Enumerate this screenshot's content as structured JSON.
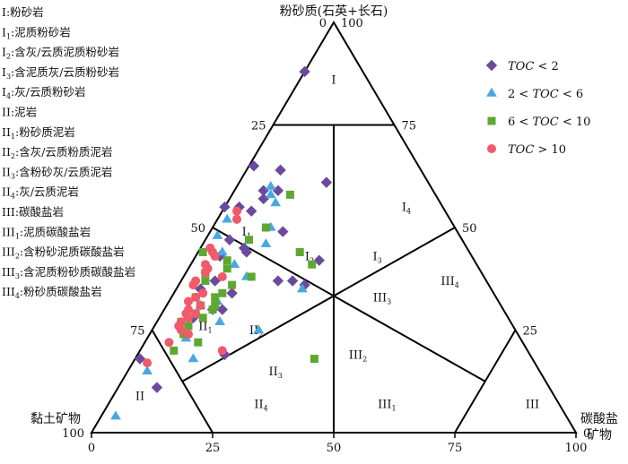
{
  "chart_data": {
    "type": "scatter",
    "subtype": "ternary",
    "vertices": {
      "top": "粉砂质(石英+长石)",
      "left": "黏土矿物",
      "right": "碳酸盐矿物"
    },
    "ticks": {
      "left_edge": [
        "0",
        "25",
        "50",
        "75",
        "100"
      ],
      "right_edge": [
        "100",
        "75",
        "50",
        "25",
        "0"
      ],
      "bottom_edge": [
        "0",
        "25",
        "50",
        "75",
        "100"
      ]
    },
    "key": [
      {
        "main": "I",
        "sub": "",
        "text": ":粉砂岩"
      },
      {
        "main": "I",
        "sub": "1",
        "text": ":泥质粉砂岩"
      },
      {
        "main": "I",
        "sub": "2",
        "text": ":含灰/云质泥质粉砂岩"
      },
      {
        "main": "I",
        "sub": "3",
        "text": ":含泥质灰/云质粉砂岩"
      },
      {
        "main": "I",
        "sub": "4",
        "text": ":灰/云质粉砂岩"
      },
      {
        "main": "II",
        "sub": "",
        "text": ":泥岩"
      },
      {
        "main": "II",
        "sub": "1",
        "text": ":粉砂质泥岩"
      },
      {
        "main": "II",
        "sub": "2",
        "text": ":含灰/云质粉质泥岩"
      },
      {
        "main": "II",
        "sub": "3",
        "text": ":含粉砂灰/云质泥岩"
      },
      {
        "main": "II",
        "sub": "4",
        "text": ":灰/云质泥岩"
      },
      {
        "main": "III",
        "sub": "",
        "text": ":碳酸盐岩"
      },
      {
        "main": "III",
        "sub": "1",
        "text": ":泥质碳酸盐岩"
      },
      {
        "main": "III",
        "sub": "2",
        "text": ":含粉砂泥质碳酸盐岩"
      },
      {
        "main": "III",
        "sub": "3",
        "text": ":含泥质粉砂质碳酸盐岩"
      },
      {
        "main": "III",
        "sub": "4",
        "text": ":粉砂质碳酸盐岩"
      }
    ],
    "zones": [
      {
        "main": "I",
        "sub": ""
      },
      {
        "main": "I",
        "sub": "1"
      },
      {
        "main": "I",
        "sub": "2"
      },
      {
        "main": "I",
        "sub": "3"
      },
      {
        "main": "I",
        "sub": "4"
      },
      {
        "main": "II",
        "sub": ""
      },
      {
        "main": "II",
        "sub": "1"
      },
      {
        "main": "II",
        "sub": "2"
      },
      {
        "main": "II",
        "sub": "3"
      },
      {
        "main": "II",
        "sub": "4"
      },
      {
        "main": "III",
        "sub": ""
      },
      {
        "main": "III",
        "sub": "1"
      },
      {
        "main": "III",
        "sub": "2"
      },
      {
        "main": "III",
        "sub": "3"
      },
      {
        "main": "III",
        "sub": "4"
      }
    ],
    "series": [
      {
        "name": "TOC < 2",
        "name_parts": [
          "",
          "TOC",
          " < 2"
        ],
        "marker": "diamond",
        "color": "#6b4a9e",
        "points": [
          [
            88,
            12,
            0
          ],
          [
            65,
            34,
            1
          ],
          [
            64,
            29,
            7
          ],
          [
            61,
            21,
            18
          ],
          [
            59,
            35,
            6
          ],
          [
            59,
            32,
            9
          ],
          [
            57,
            36,
            7
          ],
          [
            55,
            42,
            3
          ],
          [
            55,
            45,
            0
          ],
          [
            54,
            40,
            6
          ],
          [
            49,
            36,
            15
          ],
          [
            47,
            48,
            5
          ],
          [
            45,
            46,
            9
          ],
          [
            44,
            46,
            10
          ],
          [
            43,
            52,
            5
          ],
          [
            42,
            32,
            26
          ],
          [
            37,
            43,
            20
          ],
          [
            37,
            40,
            23
          ],
          [
            37,
            56,
            7
          ],
          [
            36,
            38,
            26
          ],
          [
            35,
            60,
            5
          ],
          [
            34,
            54,
            12
          ],
          [
            30,
            60,
            10
          ],
          [
            30,
            58,
            12
          ],
          [
            28,
            65,
            7
          ],
          [
            19,
            63,
            18
          ],
          [
            18,
            81,
            1
          ],
          [
            11,
            81,
            8
          ]
        ]
      },
      {
        "name": "2 < TOC < 6",
        "name_parts": [
          "2 < ",
          "TOC",
          " < 6"
        ],
        "marker": "triangle",
        "color": "#4aa8e0",
        "points": [
          [
            60,
            33,
            7
          ],
          [
            58,
            34,
            8
          ],
          [
            56,
            34,
            10
          ],
          [
            52,
            46,
            2
          ],
          [
            50,
            38,
            12
          ],
          [
            48,
            50,
            2
          ],
          [
            46,
            41,
            13
          ],
          [
            44,
            51,
            5
          ],
          [
            41,
            50,
            9
          ],
          [
            38,
            49,
            13
          ],
          [
            35,
            39,
            26
          ],
          [
            32,
            58,
            10
          ],
          [
            31,
            62,
            7
          ],
          [
            27,
            60,
            13
          ],
          [
            25,
            53,
            22
          ],
          [
            23,
            69,
            8
          ],
          [
            18,
            70,
            12
          ],
          [
            15,
            81,
            4
          ],
          [
            4,
            93,
            3
          ]
        ]
      },
      {
        "name": "6 < TOC < 10",
        "name_parts": [
          "6 < ",
          "TOC",
          " < 10"
        ],
        "marker": "square",
        "color": "#5ea832",
        "points": [
          [
            58,
            30,
            12
          ],
          [
            50,
            39,
            11
          ],
          [
            47,
            44,
            9
          ],
          [
            44,
            35,
            21
          ],
          [
            44,
            55,
            1
          ],
          [
            42,
            51,
            7
          ],
          [
            41,
            34,
            25
          ],
          [
            40,
            52,
            8
          ],
          [
            39,
            57,
            4
          ],
          [
            38,
            48,
            14
          ],
          [
            37,
            58,
            5
          ],
          [
            36,
            53,
            11
          ],
          [
            34,
            56,
            10
          ],
          [
            33,
            58,
            9
          ],
          [
            33,
            62,
            5
          ],
          [
            31,
            59,
            10
          ],
          [
            31,
            62,
            7
          ],
          [
            30,
            60,
            10
          ],
          [
            29,
            64,
            7
          ],
          [
            28,
            63,
            9
          ],
          [
            27,
            68,
            5
          ],
          [
            26,
            67,
            7
          ],
          [
            24,
            69,
            7
          ],
          [
            22,
            67,
            11
          ],
          [
            20,
            73,
            7
          ],
          [
            18,
            45,
            37
          ]
        ]
      },
      {
        "name": "TOC > 10",
        "name_parts": [
          "",
          "TOC",
          " > 10"
        ],
        "marker": "circle",
        "color": "#f05a6a",
        "points": [
          [
            54,
            43,
            3
          ],
          [
            52,
            44,
            4
          ],
          [
            45,
            53,
            2
          ],
          [
            44,
            53,
            3
          ],
          [
            43,
            53,
            4
          ],
          [
            41,
            56,
            3
          ],
          [
            40,
            56,
            4
          ],
          [
            39,
            57,
            4
          ],
          [
            38,
            54,
            8
          ],
          [
            37,
            60,
            3
          ],
          [
            36,
            61,
            3
          ],
          [
            34,
            60,
            6
          ],
          [
            33,
            62,
            5
          ],
          [
            32,
            64,
            4
          ],
          [
            31,
            62,
            7
          ],
          [
            30,
            65,
            5
          ],
          [
            29,
            66,
            5
          ],
          [
            29,
            64,
            7
          ],
          [
            28,
            66,
            6
          ],
          [
            27,
            68,
            5
          ],
          [
            26,
            69,
            5
          ],
          [
            25,
            69,
            6
          ],
          [
            24,
            68,
            8
          ],
          [
            22,
            73,
            5
          ],
          [
            20,
            63,
            17
          ],
          [
            17,
            80,
            3
          ]
        ]
      }
    ]
  }
}
